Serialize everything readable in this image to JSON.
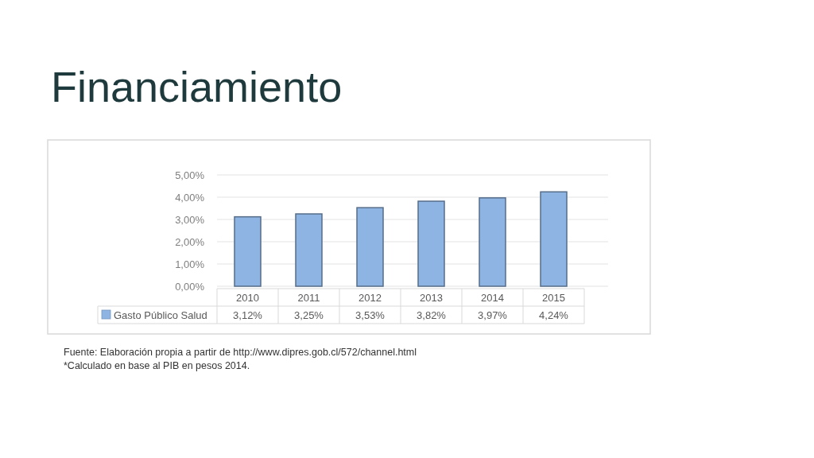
{
  "chart_data": {
    "type": "bar",
    "title": "Financiamiento",
    "categories": [
      "2010",
      "2011",
      "2012",
      "2013",
      "2014",
      "2015"
    ],
    "series": [
      {
        "name": "Gasto Público Salud",
        "color": "#8eb4e3",
        "values": [
          3.12,
          3.25,
          3.53,
          3.82,
          3.97,
          4.24
        ],
        "value_labels": [
          "3,12%",
          "3,25%",
          "3,53%",
          "3,82%",
          "3,97%",
          "4,24%"
        ]
      }
    ],
    "ylim": [
      0,
      5
    ],
    "yticks": [
      {
        "value": 0,
        "label": "0,00%"
      },
      {
        "value": 1,
        "label": "1,00%"
      },
      {
        "value": 2,
        "label": "2,00%"
      },
      {
        "value": 3,
        "label": "3,00%"
      },
      {
        "value": 4,
        "label": "4,00%"
      },
      {
        "value": 5,
        "label": "5,00%"
      }
    ],
    "grid": "y",
    "legend": "bottom",
    "annotations": [
      "Fuente: Elaboración propia a partir de http://www.dipres.gob.cl/572/channel.html",
      "*Calculado en base al PIB en pesos 2014."
    ]
  }
}
